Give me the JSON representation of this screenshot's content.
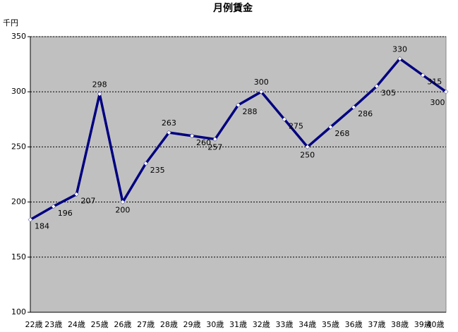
{
  "chart_data": {
    "type": "line",
    "title": "月例賃金",
    "y_label": "千円",
    "categories": [
      "22歳",
      "23歳",
      "24歳",
      "25歳",
      "26歳",
      "27歳",
      "28歳",
      "29歳",
      "30歳",
      "31歳",
      "32歳",
      "33歳",
      "34歳",
      "35歳",
      "36歳",
      "37歳",
      "38歳",
      "39歳",
      "40歳"
    ],
    "values": [
      184,
      196,
      207,
      298,
      200,
      235,
      263,
      260,
      257,
      288,
      300,
      275,
      250,
      268,
      286,
      305,
      330,
      315,
      300
    ],
    "color": "#000080",
    "marker_color": "#ffffff",
    "plot_background": "#c0c0c0",
    "ylim": [
      100,
      350
    ],
    "yticks": [
      100,
      150,
      200,
      250,
      300,
      350
    ],
    "grid": true
  }
}
